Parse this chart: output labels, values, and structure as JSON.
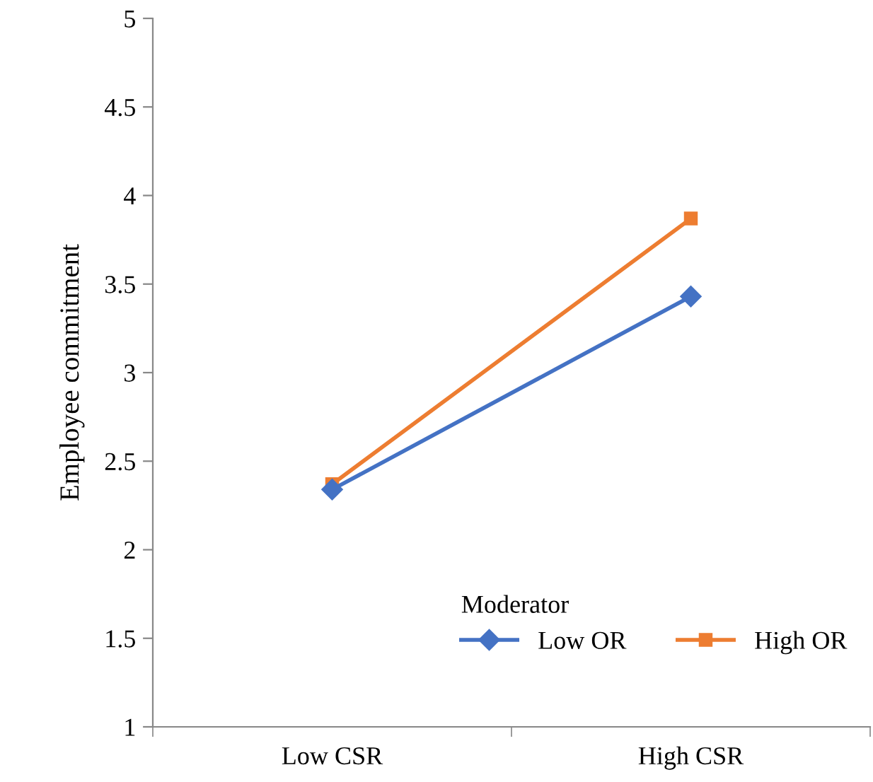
{
  "chart_data": {
    "type": "line",
    "ylabel": "Employee commitment",
    "legend_title": "Moderator",
    "categories": [
      "Low CSR",
      "High CSR"
    ],
    "series": [
      {
        "name": "Low OR",
        "color": "#4472c4",
        "values": [
          2.34,
          3.43
        ],
        "marker": "diamond"
      },
      {
        "name": "High OR",
        "color": "#ed7d31",
        "values": [
          2.37,
          3.87
        ],
        "marker": "square"
      }
    ],
    "ylim": [
      1,
      5
    ],
    "yticks": [
      1,
      1.5,
      2,
      2.5,
      3,
      3.5,
      4,
      4.5,
      5
    ],
    "grid": false,
    "legend": "bottom right"
  }
}
